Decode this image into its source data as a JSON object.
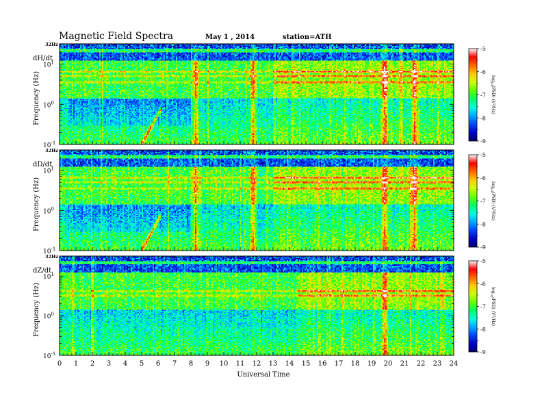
{
  "header": {
    "title": "Magnetic  Field  Spectra",
    "date": "May 1  , 2014",
    "station": "station=ATH"
  },
  "colors": {
    "colormap": [
      "#000066",
      "#0000cc",
      "#0044ff",
      "#00aaff",
      "#00ffdd",
      "#00ff66",
      "#66ff00",
      "#ccff00",
      "#ffcc00",
      "#ff6600",
      "#ff0000",
      "#ffffff"
    ],
    "axis": "#000000",
    "background": "#ffffff"
  },
  "chart_data": [
    {
      "type": "heatmap",
      "component": "dH/dt",
      "panel_label": "dH/dt",
      "top_label": "32Hz",
      "ylabel": "Frequency  (Hz)",
      "yscale": "log",
      "ylim": [
        0.1,
        32
      ],
      "y_ticks": [
        "10",
        "10",
        "10"
      ],
      "y_tick_exponents": [
        "1",
        "0",
        "-1"
      ],
      "xlim": [
        0,
        24
      ],
      "x_ticks": [
        "0",
        "1",
        "2",
        "3",
        "4",
        "5",
        "6",
        "7",
        "8",
        "9",
        "10",
        "11",
        "12",
        "13",
        "14",
        "15",
        "16",
        "17",
        "18",
        "19",
        "20",
        "21",
        "22",
        "23",
        "24"
      ],
      "colorbar_label": "log(PSD) (V²/Hz)",
      "colorbar_label_parts": [
        "log",
        "10",
        "(PSD) (V",
        "2",
        "/Hz)"
      ],
      "colorbar_range": [
        -9,
        -5
      ],
      "colorbar_ticks": [
        "-5",
        "-6",
        "-7",
        "-8",
        "-9"
      ],
      "features": {
        "resonance_bands_hz": [
          3.5,
          5.0,
          6.5
        ],
        "storm_onset_ut": 13,
        "bursts_ut": [
          8.3,
          11.8,
          19.8,
          21.6
        ],
        "pc1_event": {
          "ut_start": 5.0,
          "ut_end": 6.2,
          "freq_low_hz": 0.1,
          "freq_high_hz": 0.8
        }
      }
    },
    {
      "type": "heatmap",
      "component": "dD/dt",
      "panel_label": "dD/dt",
      "top_label": "32Hz",
      "ylabel": "Frequency  (Hz)",
      "yscale": "log",
      "ylim": [
        0.1,
        32
      ],
      "y_ticks": [
        "10",
        "10",
        "10"
      ],
      "y_tick_exponents": [
        "1",
        "0",
        "-1"
      ],
      "xlim": [
        0,
        24
      ],
      "x_ticks": [
        "0",
        "1",
        "2",
        "3",
        "4",
        "5",
        "6",
        "7",
        "8",
        "9",
        "10",
        "11",
        "12",
        "13",
        "14",
        "15",
        "16",
        "17",
        "18",
        "19",
        "20",
        "21",
        "22",
        "23",
        "24"
      ],
      "colorbar_label": "log(PSD) (V²/Hz)",
      "colorbar_label_parts": [
        "log",
        "10",
        "(PSD) (V",
        "2",
        "/Hz)"
      ],
      "colorbar_range": [
        -9,
        -5
      ],
      "colorbar_ticks": [
        "-5",
        "-6",
        "-7",
        "-8",
        "-9"
      ],
      "features": {
        "resonance_bands_hz": [
          3.5,
          5.0,
          6.5
        ],
        "storm_onset_ut": 13,
        "bursts_ut": [
          8.3,
          11.8,
          19.8,
          21.6
        ],
        "pc1_event": {
          "ut_start": 5.0,
          "ut_end": 6.2,
          "freq_low_hz": 0.1,
          "freq_high_hz": 0.8
        }
      }
    },
    {
      "type": "heatmap",
      "component": "dZ/dt",
      "panel_label": "dZ/dt",
      "top_label": "32Hz",
      "ylabel": "Frequency  (Hz)",
      "yscale": "log",
      "ylim": [
        0.1,
        32
      ],
      "y_ticks": [
        "10",
        "10",
        "10"
      ],
      "y_tick_exponents": [
        "1",
        "0",
        "-1"
      ],
      "xlim": [
        0,
        24
      ],
      "x_ticks": [
        "0",
        "1",
        "2",
        "3",
        "4",
        "5",
        "6",
        "7",
        "8",
        "9",
        "10",
        "11",
        "12",
        "13",
        "14",
        "15",
        "16",
        "17",
        "18",
        "19",
        "20",
        "21",
        "22",
        "23",
        "24"
      ],
      "xlabel": "Universal Time",
      "colorbar_label": "log(PSD) (V²/Hz)",
      "colorbar_label_parts": [
        "log",
        "10",
        "(PSD) (V",
        "2",
        "/Hz)"
      ],
      "colorbar_range": [
        -9,
        -5
      ],
      "colorbar_ticks": [
        "-5",
        "-6",
        "-7",
        "-8",
        "-9"
      ],
      "features": {
        "resonance_bands_hz": [
          3.2,
          4.2
        ],
        "storm_onset_ut": 14.5,
        "bursts_ut": [
          19.8
        ]
      }
    }
  ]
}
